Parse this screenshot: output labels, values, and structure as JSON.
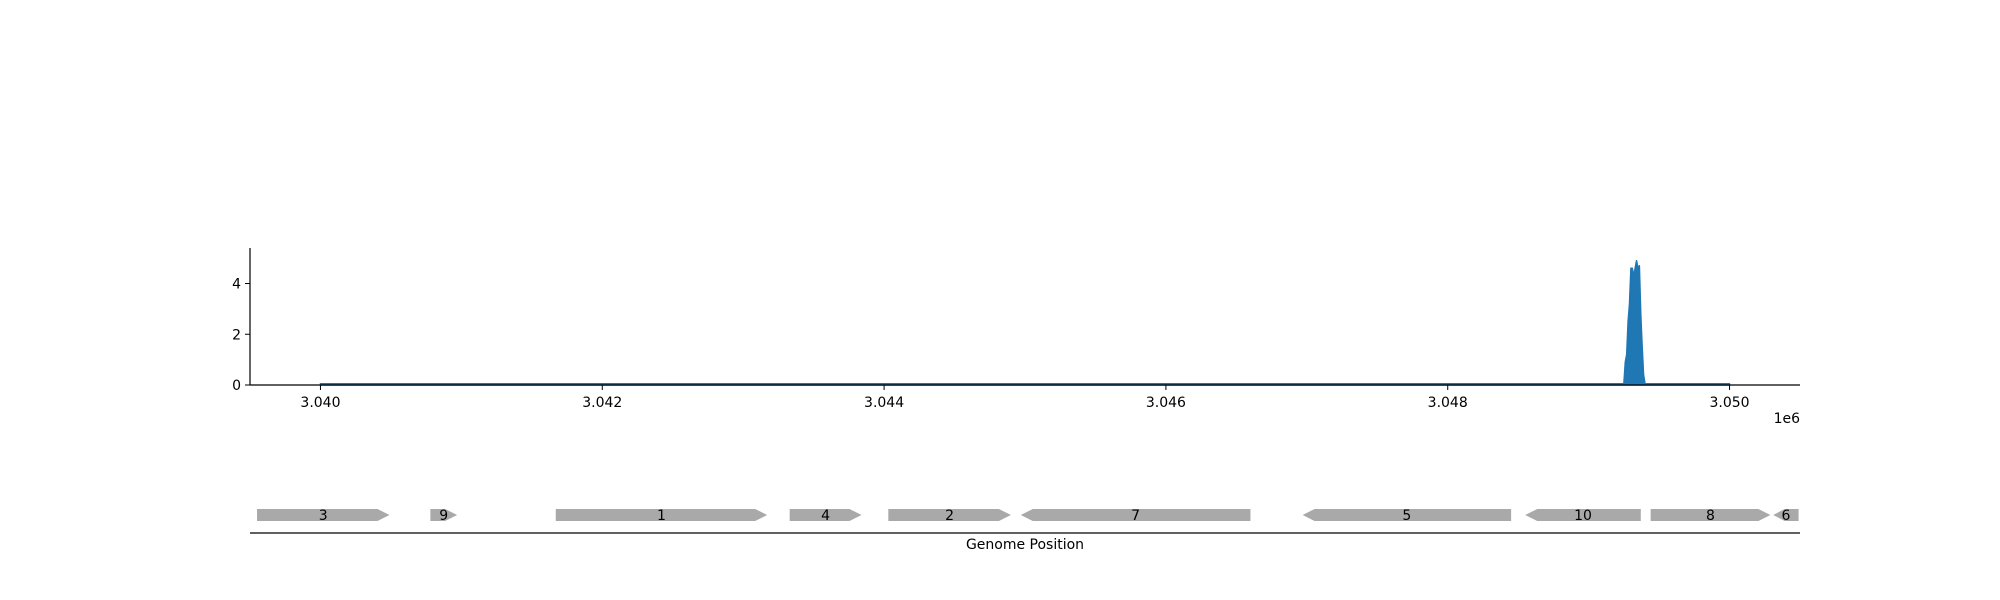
{
  "chart_data": [
    {
      "type": "area",
      "title": "",
      "xlabel": "",
      "ylabel": "",
      "x_offset_label": "1e6",
      "xlim": [
        3.0395,
        3.0505
      ],
      "ylim": [
        0,
        5.4
      ],
      "xticks": [
        3.04,
        3.042,
        3.044,
        3.046,
        3.048,
        3.05
      ],
      "xtick_labels": [
        "3.040",
        "3.042",
        "3.044",
        "3.046",
        "3.048",
        "3.050"
      ],
      "yticks": [
        0,
        2,
        4
      ],
      "ytick_labels": [
        "0",
        "2",
        "4"
      ],
      "grid": false,
      "color": "#1f77b4",
      "series": [
        {
          "x": [
            3.04,
            3.04925,
            3.04926,
            3.04927,
            3.04928,
            3.04929,
            3.0493,
            3.04931,
            3.04932,
            3.04933,
            3.04934,
            3.04935,
            3.04936,
            3.04937,
            3.04938,
            3.04939,
            3.0494,
            3.05
          ],
          "values": [
            0.05,
            0.05,
            0.9,
            1.2,
            2.5,
            3.2,
            4.6,
            4.6,
            4.3,
            4.6,
            4.9,
            4.6,
            4.7,
            2.8,
            1.5,
            0.4,
            0.05,
            0.05
          ]
        }
      ]
    },
    {
      "type": "gene-track",
      "xlabel": "Genome Position",
      "genes": [
        {
          "label": "3",
          "start": 3.03955,
          "end": 3.04049,
          "strand": "+"
        },
        {
          "label": "9",
          "start": 3.04078,
          "end": 3.04097,
          "strand": "+"
        },
        {
          "label": "1",
          "start": 3.04167,
          "end": 3.04317,
          "strand": "+"
        },
        {
          "label": "4",
          "start": 3.04333,
          "end": 3.04384,
          "strand": "+"
        },
        {
          "label": "2",
          "start": 3.04403,
          "end": 3.0449,
          "strand": "+"
        },
        {
          "label": "7",
          "start": 3.04497,
          "end": 3.0466,
          "strand": "-"
        },
        {
          "label": "5",
          "start": 3.04697,
          "end": 3.04845,
          "strand": "-"
        },
        {
          "label": "10",
          "start": 3.04855,
          "end": 3.04937,
          "strand": "-"
        },
        {
          "label": "8",
          "start": 3.04944,
          "end": 3.05029,
          "strand": "+"
        },
        {
          "label": "6",
          "start": 3.05031,
          "end": 3.05049,
          "strand": "-"
        }
      ],
      "color": "#a9a9a9"
    }
  ]
}
